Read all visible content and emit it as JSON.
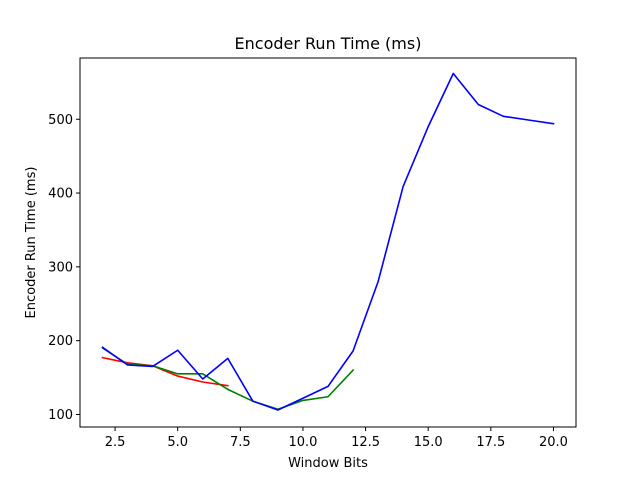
{
  "chart_data": {
    "type": "line",
    "title": "Encoder Run Time (ms)",
    "xlabel": "Window Bits",
    "ylabel": "Encoder Run Time (ms)",
    "xlim": [
      1.1,
      20.9
    ],
    "ylim": [
      83,
      583
    ],
    "xticks": [
      2.5,
      5.0,
      7.5,
      10.0,
      12.5,
      15.0,
      17.5,
      20.0
    ],
    "xtick_labels": [
      "2.5",
      "5.0",
      "7.5",
      "10.0",
      "12.5",
      "15.0",
      "17.5",
      "20.0"
    ],
    "yticks": [
      100,
      200,
      300,
      400,
      500
    ],
    "ytick_labels": [
      "100",
      "200",
      "300",
      "400",
      "500"
    ],
    "grid": false,
    "legend": false,
    "series": [
      {
        "color": "#ff0000",
        "x": [
          2,
          3,
          4,
          5,
          6,
          7
        ],
        "y": [
          177,
          170,
          166,
          152,
          144,
          139
        ]
      },
      {
        "color": "#008000",
        "x": [
          2,
          3,
          4,
          5,
          6,
          7,
          8,
          9,
          10,
          11,
          12
        ],
        "y": [
          190,
          168,
          166,
          155,
          155,
          134,
          118,
          107,
          119,
          124,
          160
        ]
      },
      {
        "color": "#0000ff",
        "x": [
          2,
          3,
          4,
          5,
          6,
          7,
          8,
          9,
          10,
          11,
          12,
          13,
          14,
          15,
          16,
          17,
          18,
          19,
          20
        ],
        "y": [
          191,
          167,
          165,
          187,
          148,
          176,
          118,
          106,
          122,
          138,
          186,
          280,
          409,
          490,
          562,
          520,
          504,
          499,
          494
        ]
      }
    ]
  }
}
